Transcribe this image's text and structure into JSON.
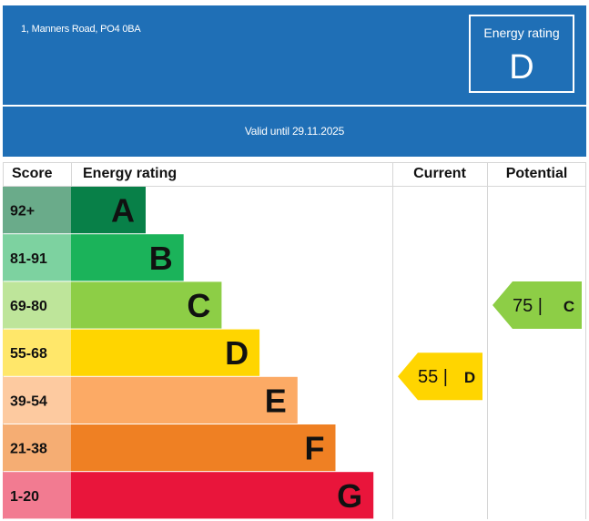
{
  "header": {
    "address": "1, Manners Road, PO4 0BA",
    "rating_label": "Energy rating",
    "rating_letter": "D",
    "valid_until": "Valid until 29.11.2025",
    "background_color": "#1f6fb6"
  },
  "chart_data": {
    "type": "bar",
    "title": "Energy rating",
    "columns": [
      "Score",
      "Energy rating",
      "Current",
      "Potential"
    ],
    "bands": [
      {
        "score": "92+",
        "letter": "A",
        "length": 1,
        "color": "#088048",
        "score_color": "#6aab8a"
      },
      {
        "score": "81-91",
        "letter": "B",
        "length": 2,
        "color": "#1bb35a",
        "score_color": "#7dd2a0"
      },
      {
        "score": "69-80",
        "letter": "C",
        "length": 3,
        "color": "#8dce46",
        "score_color": "#bee59a"
      },
      {
        "score": "55-68",
        "letter": "D",
        "length": 4,
        "color": "#ffd500",
        "score_color": "#ffe76a"
      },
      {
        "score": "39-54",
        "letter": "E",
        "length": 5,
        "color": "#fcaa65",
        "score_color": "#fdcaa0"
      },
      {
        "score": "21-38",
        "letter": "F",
        "length": 6,
        "color": "#ef8023",
        "score_color": "#f5ad73"
      },
      {
        "score": "1-20",
        "letter": "G",
        "length": 7,
        "color": "#e9153b",
        "score_color": "#f27b91"
      }
    ],
    "current": {
      "value": 55,
      "letter": "D",
      "text": "55 |",
      "color": "#ffd500"
    },
    "potential": {
      "value": 75,
      "letter": "C",
      "text": "75 |",
      "color": "#8dce46"
    }
  }
}
